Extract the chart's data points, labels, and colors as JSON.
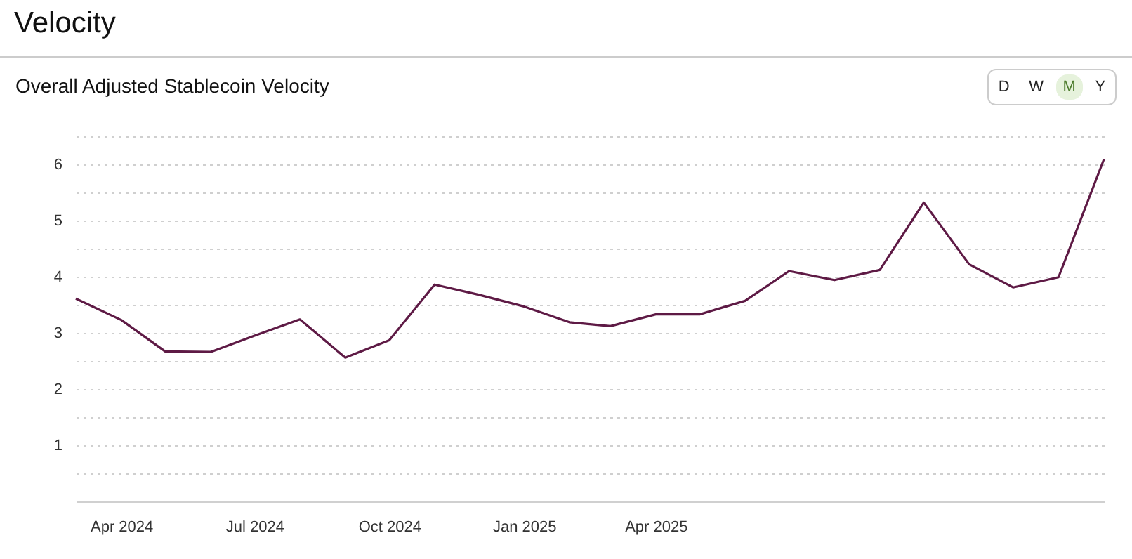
{
  "chart_data": {
    "type": "line",
    "title": "Velocity",
    "subtitle": "Overall Adjusted Stablecoin Velocity",
    "annotations": [
      "D",
      "W",
      "M",
      "Y"
    ],
    "x": [
      "2024-03",
      "2024-04",
      "2024-05",
      "2024-06",
      "2024-07",
      "2024-08",
      "2024-09",
      "2024-10",
      "2024-11",
      "2024-12",
      "2025-01",
      "2025-02",
      "2025-03",
      "2025-04",
      "2025-05",
      "2025-06",
      "2025-07",
      "2025-08",
      "2025-09",
      "2025-10",
      "2025-11",
      "2025-12",
      "2026-01",
      "2026-02"
    ],
    "series": [
      {
        "color": "#5e1a45",
        "values": [
          3.61,
          3.23,
          2.67,
          2.66,
          2.95,
          3.24,
          2.56,
          2.87,
          3.86,
          3.68,
          3.47,
          3.19,
          3.12,
          3.33,
          3.33,
          3.57,
          4.1,
          3.94,
          4.12,
          5.32,
          4.22,
          3.81,
          3.99,
          6.09
        ]
      }
    ],
    "xlim": [
      "2024-03",
      "2026-02"
    ],
    "xticks": [
      {
        "value": "2024-04",
        "label": "Apr 2024"
      },
      {
        "value": "2024-07",
        "label": "Jul 2024"
      },
      {
        "value": "2024-10",
        "label": "Oct 2024"
      },
      {
        "value": "2025-01",
        "label": "Jan 2025"
      },
      {
        "value": "2025-04",
        "label": "Apr 2025"
      }
    ],
    "ylim": [
      0,
      6.5
    ],
    "yticks": [
      {
        "value": 0.5,
        "label": null
      },
      1,
      {
        "value": 1.5,
        "label": null
      },
      2,
      {
        "value": 2.5,
        "label": null
      },
      3,
      {
        "value": 3.5,
        "label": null
      },
      4,
      {
        "value": 4.5,
        "label": null
      },
      5,
      {
        "value": 5.5,
        "label": null
      },
      6,
      {
        "value": 6.5,
        "label": null
      }
    ],
    "grid": "y",
    "marker": "none",
    "line_style": "solid"
  }
}
